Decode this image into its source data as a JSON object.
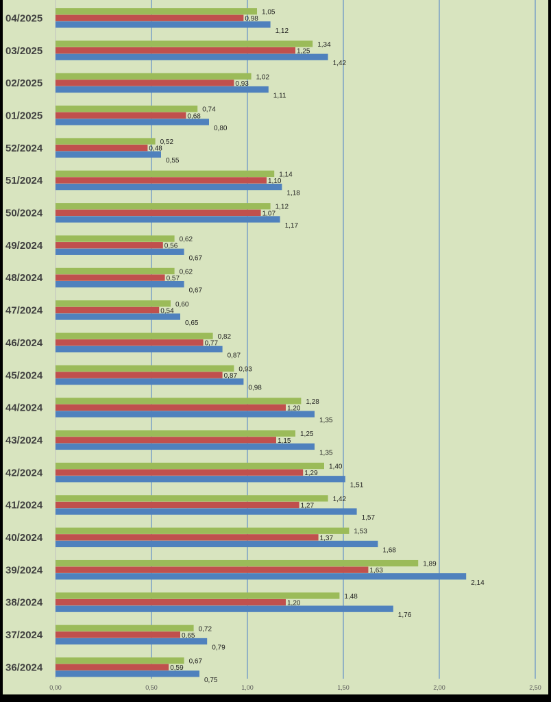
{
  "chart_data": {
    "type": "bar",
    "orientation": "horizontal",
    "title": "",
    "xlabel": "",
    "ylabel": "",
    "xlim": [
      0,
      2.5
    ],
    "x_ticks": [
      "0,00",
      "0,50",
      "1,00",
      "1,50",
      "2,00",
      "2,50"
    ],
    "grid": "vertical major gridlines",
    "legend": "none",
    "categories": [
      "04/2025",
      "03/2025",
      "02/2025",
      "01/2025",
      "52/2024",
      "51/2024",
      "50/2024",
      "49/2024",
      "48/2024",
      "47/2024",
      "46/2024",
      "45/2024",
      "44/2024",
      "43/2024",
      "42/2024",
      "41/2024",
      "40/2024",
      "39/2024",
      "38/2024",
      "37/2024",
      "36/2024"
    ],
    "series": [
      {
        "name": "green",
        "color": "#9bbb59",
        "values": [
          1.05,
          1.34,
          1.02,
          0.74,
          0.52,
          1.14,
          1.12,
          0.62,
          0.62,
          0.6,
          0.82,
          0.93,
          1.28,
          1.25,
          1.4,
          1.42,
          1.53,
          1.89,
          1.48,
          0.72,
          0.67
        ],
        "labels": [
          "1,05",
          "1,34",
          "1,02",
          "0,74",
          "0,52",
          "1,14",
          "1,12",
          "0,62",
          "0,62",
          "0,60",
          "0,82",
          "0,93",
          "1,28",
          "1,25",
          "1,40",
          "1,42",
          "1,53",
          "1,89",
          "1,48",
          "0,72",
          "0,67"
        ]
      },
      {
        "name": "red",
        "color": "#c0504d",
        "values": [
          0.98,
          1.25,
          0.93,
          0.68,
          0.48,
          1.1,
          1.07,
          0.56,
          0.57,
          0.54,
          0.77,
          0.87,
          1.2,
          1.15,
          1.29,
          1.27,
          1.37,
          1.63,
          1.2,
          0.65,
          0.59
        ],
        "labels": [
          "0,98",
          "1,25",
          "0,93",
          "0,68",
          "0,48",
          "1,10",
          "1,07",
          "0,56",
          "0,57",
          "0,54",
          "0,77",
          "0,87",
          "1,20",
          "1,15",
          "1,29",
          "1,27",
          "1,37",
          "1,63",
          "1,20",
          "0,65",
          "0,59"
        ]
      },
      {
        "name": "blue",
        "color": "#4f81bd",
        "values": [
          1.12,
          1.42,
          1.11,
          0.8,
          0.55,
          1.18,
          1.17,
          0.67,
          0.67,
          0.65,
          0.87,
          0.98,
          1.35,
          1.35,
          1.51,
          1.57,
          1.68,
          2.14,
          1.76,
          0.79,
          0.75
        ],
        "labels": [
          "1,12",
          "1,42",
          "1,11",
          "0,80",
          "0,55",
          "1,18",
          "1,17",
          "0,67",
          "0,67",
          "0,65",
          "0,87",
          "0,98",
          "1,35",
          "1,35",
          "1,51",
          "1,57",
          "1,68",
          "2,14",
          "1,76",
          "0,79",
          "0,75"
        ]
      }
    ]
  }
}
